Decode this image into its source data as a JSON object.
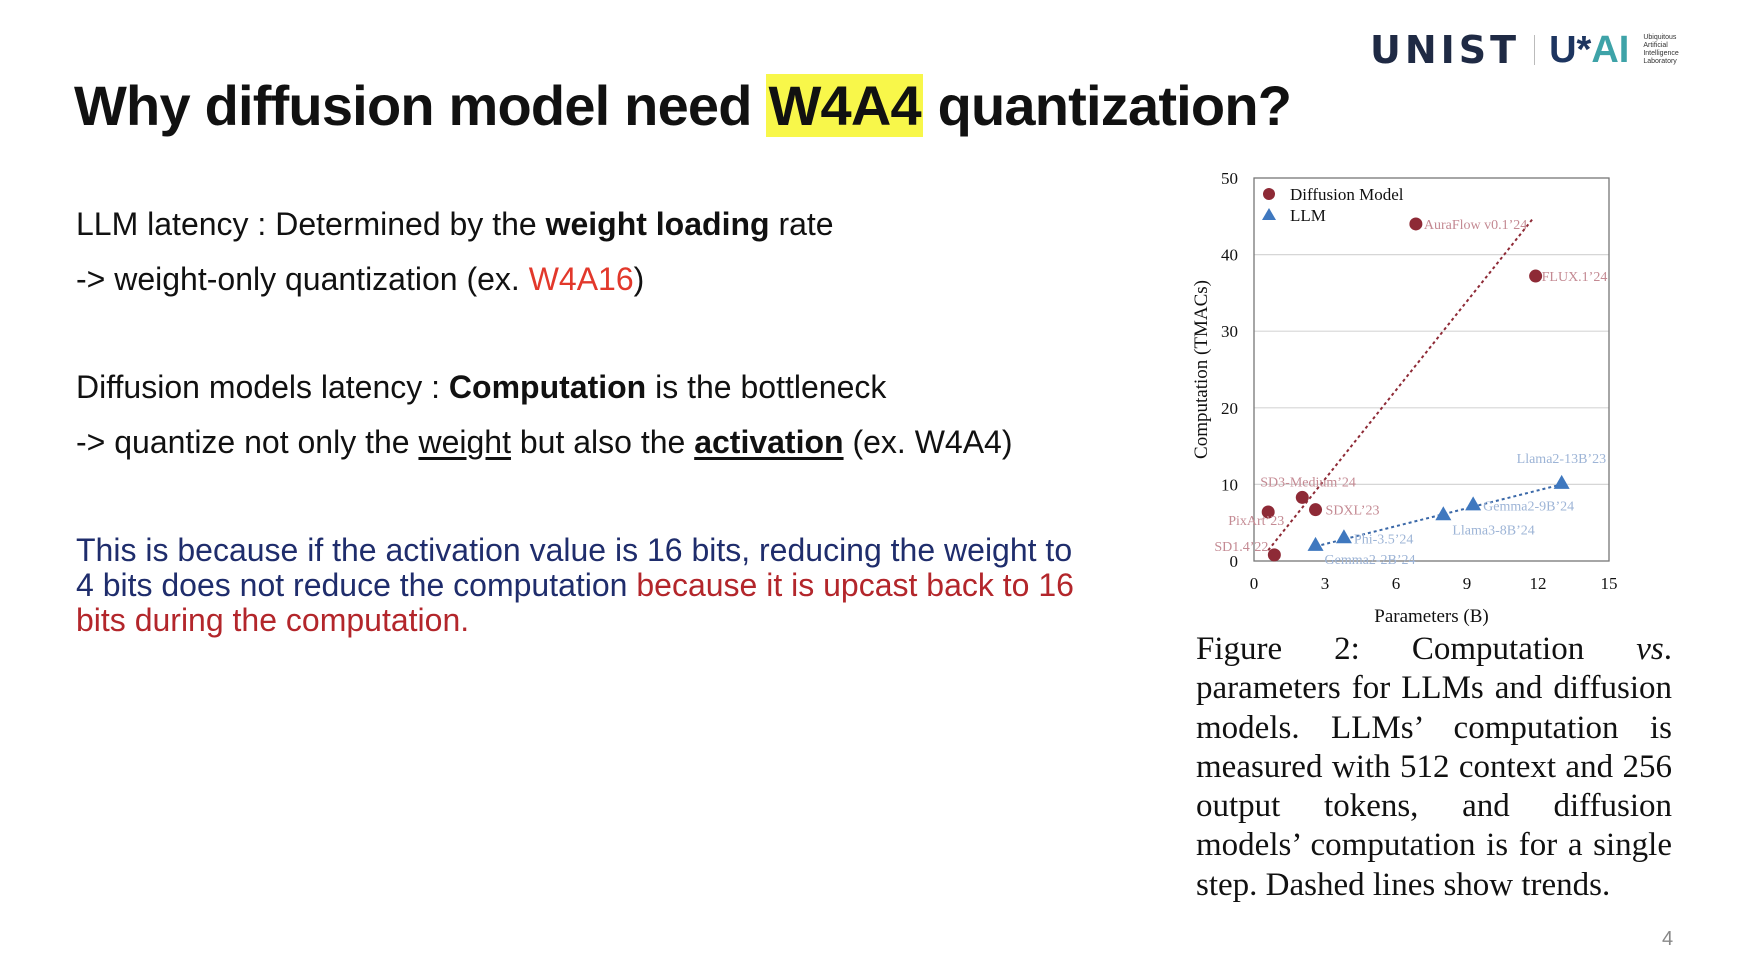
{
  "title": {
    "before": "Why diffusion model need ",
    "highlight": "W4A4",
    "after": " quantization?"
  },
  "logo": {
    "unist": "UNIST",
    "uai_u": "U*",
    "uai_ai": "AI",
    "lab": [
      "Ubiquitous",
      "Artificial",
      "Intelligence",
      "Laboratory"
    ]
  },
  "body": {
    "l1a": "LLM latency : Determined by the ",
    "l1b": "weight loading",
    "l1c": " rate",
    "l2a": "-> weight-only quantization (ex. ",
    "l2b": "W4A16",
    "l2c": ")",
    "l3a": "Diffusion models latency : ",
    "l3b": "Computation",
    "l3c": " is the bottleneck",
    "l4a": "-> quantize not only the ",
    "l4b": "weight",
    "l4c": " but also the ",
    "l4d": "activation",
    "l4e": " (ex. W4A4)",
    "p_blue": "This is because if the activation value is 16 bits, reducing the weight to 4 bits does not reduce the computation ",
    "p_red": "because it is upcast back to 16 bits during the computation."
  },
  "caption": "Figure 2: Computation vs. parameters for LLMs and diffusion models. LLMs’ computation is measured with 512 context and 256 output tokens, and diffusion models’ computation is for a single step. Dashed lines show trends.",
  "caption_parts": {
    "a": "Figure 2: Computation ",
    "b": "vs",
    "c": ". parameters for LLMs and diffusion models. LLMs’ computation is measured with 512 context and 256 output tokens, and diffusion models’ computation is for a single step. Dashed lines show trends."
  },
  "page_number": "4",
  "chart_data": {
    "type": "scatter",
    "xlabel": "Parameters (B)",
    "ylabel": "Computation (TMACs)",
    "xlim": [
      0,
      15
    ],
    "ylim": [
      0,
      50
    ],
    "xticks": [
      0,
      3,
      6,
      9,
      12,
      15
    ],
    "yticks": [
      0,
      10,
      20,
      30,
      40,
      50
    ],
    "grid": "horizontal",
    "legend": "top-left",
    "series": [
      {
        "name": "Diffusion Model",
        "marker": "circle",
        "color": "#8e2a36",
        "label_color": "#c48a93",
        "points": [
          {
            "label": "PixArt’23",
            "x": 0.6,
            "y": 6.4
          },
          {
            "label": "SD1.4’22",
            "x": 0.86,
            "y": 0.8
          },
          {
            "label": "SD3-Medium’24",
            "x": 2.04,
            "y": 8.3
          },
          {
            "label": "SDXL’23",
            "x": 2.6,
            "y": 6.7
          },
          {
            "label": "AuraFlow v0.1’24",
            "x": 6.84,
            "y": 44.0
          },
          {
            "label": "FLUX.1’24",
            "x": 11.9,
            "y": 37.2
          }
        ],
        "trend": [
          [
            0.6,
            1.4
          ],
          [
            11.76,
            44.6
          ]
        ]
      },
      {
        "name": "LLM",
        "marker": "triangle",
        "color": "#3f78bf",
        "label_color": "#9db4d6",
        "points": [
          {
            "label": "Gemma2-2B’24",
            "x": 2.6,
            "y": 2.1
          },
          {
            "label": "Phi-3.5’24",
            "x": 3.8,
            "y": 3.1
          },
          {
            "label": "Llama3-8B’24",
            "x": 8.0,
            "y": 6.1
          },
          {
            "label": "Gemma2-9B’24",
            "x": 9.26,
            "y": 7.4
          },
          {
            "label": "Llama2-13B’23",
            "x": 13.0,
            "y": 10.2
          }
        ],
        "trend": [
          [
            2.6,
            1.9
          ],
          [
            13.0,
            10.0
          ]
        ]
      }
    ]
  }
}
